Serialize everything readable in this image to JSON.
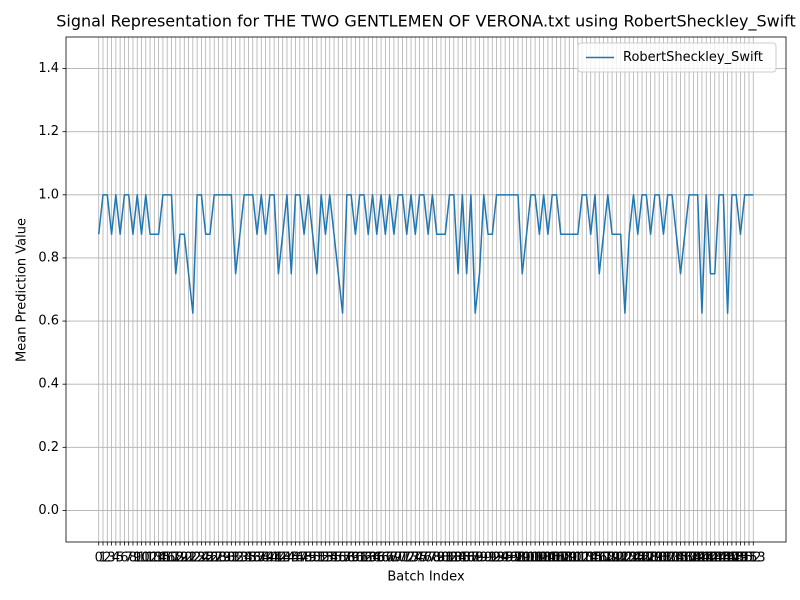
{
  "chart_data": {
    "type": "line",
    "title": "Signal Representation for THE TWO GENTLEMEN OF VERONA.txt using RobertSheckley_Swift",
    "x_label": "Batch Index",
    "y_label": "Mean Prediction Value",
    "x": [
      0,
      1,
      2,
      3,
      4,
      5,
      6,
      7,
      8,
      9,
      10,
      11,
      12,
      13,
      14,
      15,
      16,
      17,
      18,
      19,
      20,
      21,
      22,
      23,
      24,
      25,
      26,
      27,
      28,
      29,
      30,
      31,
      32,
      33,
      34,
      35,
      36,
      37,
      38,
      39,
      40,
      41,
      42,
      43,
      44,
      45,
      46,
      47,
      48,
      49,
      50,
      51,
      52,
      53,
      54,
      55,
      56,
      57,
      58,
      59,
      60,
      61,
      62,
      63,
      64,
      65,
      66,
      67,
      68,
      69,
      70,
      71,
      72,
      73,
      74,
      75,
      76,
      77,
      78,
      79,
      80,
      81,
      82,
      83,
      84,
      85,
      86,
      87,
      88,
      89,
      90,
      91,
      92,
      93,
      94,
      95,
      96,
      97,
      98,
      99,
      100,
      101,
      102,
      103,
      104,
      105,
      106,
      107,
      108,
      109,
      110,
      111,
      112,
      113,
      114,
      115,
      116,
      117,
      118,
      119,
      120,
      121,
      122,
      123,
      124,
      125,
      126,
      127,
      128,
      129,
      130,
      131,
      132,
      133,
      134,
      135,
      136,
      137,
      138,
      139,
      140,
      141,
      142,
      143,
      144,
      145,
      146,
      147,
      148,
      149,
      150,
      151,
      152,
      153
    ],
    "series": [
      {
        "name": "RobertSheckley_Swift",
        "color": "#1f77b4",
        "values": [
          0.875,
          1,
          1,
          0.875,
          1,
          0.875,
          1,
          1,
          0.875,
          1,
          0.875,
          1,
          0.875,
          0.875,
          0.875,
          1,
          1,
          1,
          0.75,
          0.875,
          0.875,
          0.75,
          0.625,
          1,
          1,
          0.875,
          0.875,
          1,
          1,
          1,
          1,
          1,
          0.75,
          0.875,
          1,
          1,
          1,
          0.875,
          1,
          0.875,
          1,
          1,
          0.75,
          0.875,
          1,
          0.75,
          1,
          1,
          0.875,
          1,
          0.875,
          0.75,
          1,
          0.875,
          1,
          0.875,
          0.75,
          0.625,
          1,
          1,
          0.875,
          1,
          1,
          0.875,
          1,
          0.875,
          1,
          0.875,
          1,
          0.875,
          1,
          1,
          0.875,
          1,
          0.875,
          1,
          1,
          0.875,
          1,
          0.875,
          0.875,
          0.875,
          1,
          1,
          0.75,
          1,
          0.75,
          1,
          0.625,
          0.75,
          1,
          0.875,
          0.875,
          1,
          1,
          1,
          1,
          1,
          1,
          0.75,
          0.875,
          1,
          1,
          0.875,
          1,
          0.875,
          1,
          1,
          0.875,
          0.875,
          0.875,
          0.875,
          0.875,
          1,
          1,
          0.875,
          1,
          0.75,
          0.875,
          1,
          0.875,
          0.875,
          0.875,
          0.625,
          0.875,
          1,
          0.875,
          1,
          1,
          0.875,
          1,
          1,
          0.875,
          1,
          1,
          0.875,
          0.75,
          0.875,
          1,
          1,
          1,
          0.625,
          1,
          0.75,
          0.75,
          1,
          1,
          0.625,
          1,
          1,
          0.875,
          1,
          1,
          1
        ]
      }
    ],
    "xlim": [
      -7.65,
      160.65
    ],
    "xticks": [
      0,
      1,
      2,
      3,
      4,
      5,
      6,
      7,
      8,
      9,
      10,
      11,
      12,
      13,
      14,
      15,
      16,
      17,
      18,
      19,
      20,
      21,
      22,
      23,
      24,
      25,
      26,
      27,
      28,
      29,
      30,
      31,
      32,
      33,
      34,
      35,
      36,
      37,
      38,
      39,
      40,
      41,
      42,
      43,
      44,
      45,
      46,
      47,
      48,
      49,
      50,
      51,
      52,
      53,
      54,
      55,
      56,
      57,
      58,
      59,
      60,
      61,
      62,
      63,
      64,
      65,
      66,
      67,
      68,
      69,
      70,
      71,
      72,
      73,
      74,
      75,
      76,
      77,
      78,
      79,
      80,
      81,
      82,
      83,
      84,
      85,
      86,
      87,
      88,
      89,
      90,
      91,
      92,
      93,
      94,
      95,
      96,
      97,
      98,
      99,
      100,
      101,
      102,
      103,
      104,
      105,
      106,
      107,
      108,
      109,
      110,
      111,
      112,
      113,
      114,
      115,
      116,
      117,
      118,
      119,
      120,
      121,
      122,
      123,
      124,
      125,
      126,
      127,
      128,
      129,
      130,
      131,
      132,
      133,
      134,
      135,
      136,
      137,
      138,
      139,
      140,
      141,
      142,
      143,
      144,
      145,
      146,
      147,
      148,
      149,
      150,
      151,
      152,
      153
    ],
    "ylim": [
      -0.1,
      1.5
    ],
    "yticks": [
      {
        "value": 0,
        "label": "0.0"
      },
      0.2,
      0.4,
      0.6,
      0.8,
      {
        "value": 1,
        "label": "1.0"
      },
      1.2,
      1.4
    ],
    "grid": true,
    "legend": "upper right"
  }
}
